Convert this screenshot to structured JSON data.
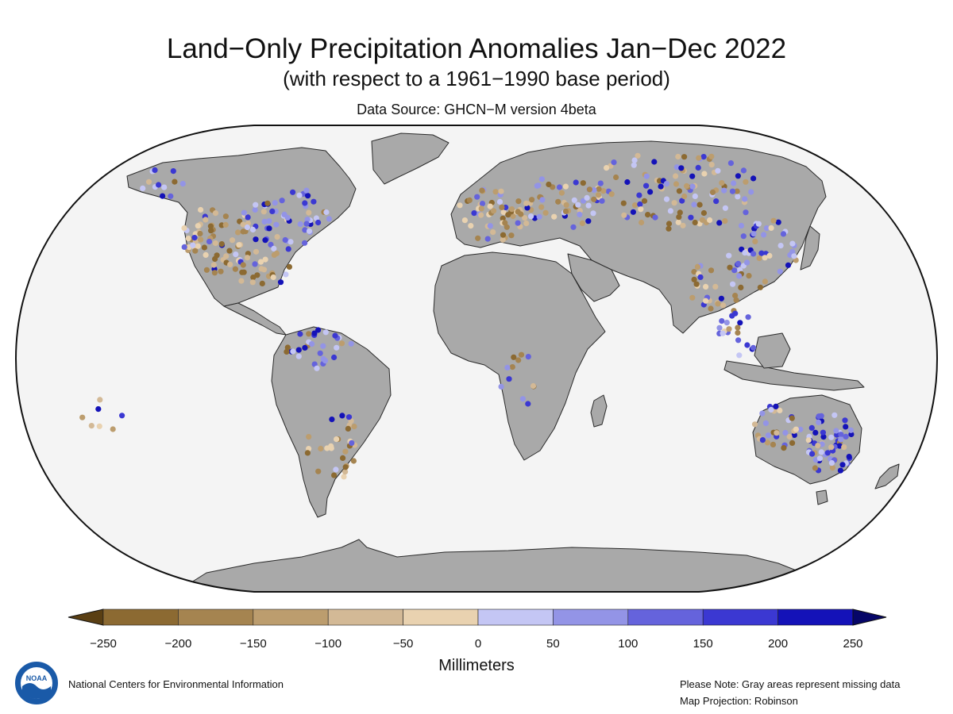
{
  "header": {
    "title": "Land−Only Precipitation Anomalies Jan−Dec 2022",
    "subtitle": "(with respect to a 1961−1990 base period)",
    "source": "Data Source: GHCN−M version 4beta"
  },
  "colors": {
    "ocean": "#f4f4f4",
    "land_missing": "#a9a9a9",
    "outline": "#111111"
  },
  "colorbar": {
    "unit": "Millimeters",
    "ticks": [
      "−250",
      "−200",
      "−150",
      "−100",
      "−50",
      "0",
      "50",
      "100",
      "150",
      "200",
      "250"
    ],
    "bins": [
      "#8c6a32",
      "#a58450",
      "#bc9d6e",
      "#d3b996",
      "#e9d2b0",
      "#c4c6f4",
      "#9394e6",
      "#6563dc",
      "#3b38d2",
      "#1412b8"
    ],
    "under_color": "#5a3f13",
    "over_color": "#060668"
  },
  "footer": {
    "agency": "National Centers for Environmental Information",
    "note": "Please Note: Gray areas represent missing data",
    "projection": "Map Projection: Robinson",
    "logo_text": "NOAA"
  }
}
